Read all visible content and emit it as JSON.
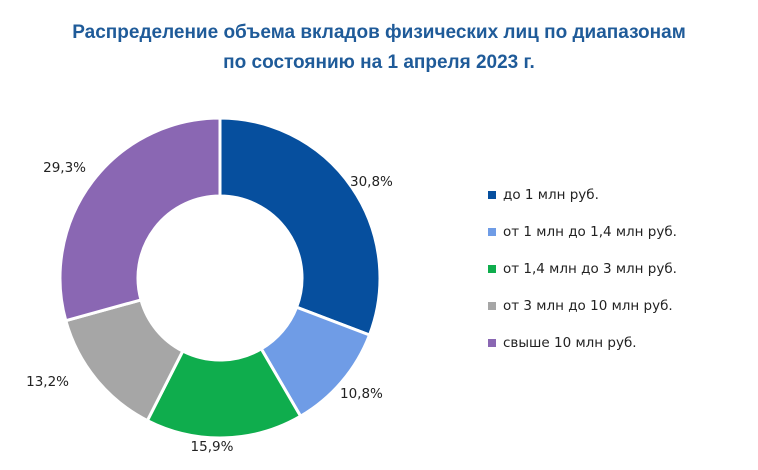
{
  "chart_data": {
    "type": "pie",
    "title_lines": [
      "Распределение объема вкладов физических лиц по диапазонам",
      "по состоянию на 1 апреля 2023 г."
    ],
    "categories": [
      "до 1 млн руб.",
      "от 1 млн до 1,4 млн руб.",
      "от 1,4 млн до 3 млн руб.",
      "от 3 млн до 10 млн руб.",
      "свыше 10 млн руб."
    ],
    "values": [
      30.8,
      10.8,
      15.9,
      13.2,
      29.3
    ],
    "value_labels": [
      "30,8%",
      "10,8%",
      "15,9%",
      "13,2%",
      "29,3%"
    ],
    "colors": [
      "#064f9e",
      "#6f9ce6",
      "#0fad4d",
      "#a6a6a6",
      "#8a67b3"
    ],
    "donut": true,
    "legend_position": "right"
  }
}
